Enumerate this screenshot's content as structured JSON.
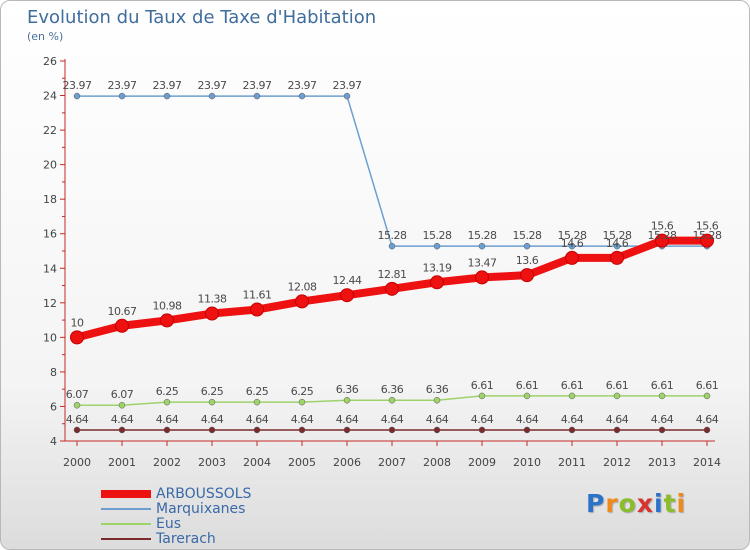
{
  "title": "Evolution du Taux de Taxe d'Habitation",
  "subtitle": "(en %)",
  "logo": {
    "text": "Proxiti",
    "letter_colors": [
      "#2b73c8",
      "#ef8a1a",
      "#8bbd2a",
      "#d7332f",
      "#2b73c8",
      "#8bbd2a",
      "#ef8a1a"
    ]
  },
  "chart_data": {
    "type": "line",
    "x": [
      "2000",
      "2001",
      "2002",
      "2003",
      "2004",
      "2005",
      "2006",
      "2007",
      "2008",
      "2009",
      "2010",
      "2011",
      "2012",
      "2013",
      "2014"
    ],
    "ylim": [
      4,
      26
    ],
    "yticks": [
      "4",
      "6",
      "8",
      "10",
      "12",
      "14",
      "16",
      "18",
      "20",
      "22",
      "24",
      "26"
    ],
    "grid": false,
    "legend_position": "bottom-left",
    "series": [
      {
        "name": "ARBOUSSOLS",
        "color": "#ee1111",
        "values": [
          10,
          10.67,
          10.98,
          11.38,
          11.61,
          12.08,
          12.44,
          12.81,
          13.19,
          13.47,
          13.6,
          14.6,
          14.6,
          15.6,
          15.6
        ],
        "labels": [
          "10",
          "10.67",
          "10.98",
          "11.38",
          "11.61",
          "12.08",
          "12.44",
          "12.81",
          "13.19",
          "13.47",
          "13.6",
          "14.6",
          "14.6",
          "15.6",
          "15.6"
        ]
      },
      {
        "name": "Marquixanes",
        "color": "#6c9fd0",
        "values": [
          23.97,
          23.97,
          23.97,
          23.97,
          23.97,
          23.97,
          23.97,
          15.28,
          15.28,
          15.28,
          15.28,
          15.28,
          15.28,
          15.28,
          15.28
        ],
        "labels": [
          "23.97",
          "23.97",
          "23.97",
          "23.97",
          "23.97",
          "23.97",
          "23.97",
          "15.28",
          "15.28",
          "15.28",
          "15.28",
          "15.28",
          "15.28",
          "15.28",
          "15.28"
        ]
      },
      {
        "name": "Eus",
        "color": "#9ed36a",
        "values": [
          6.07,
          6.07,
          6.25,
          6.25,
          6.25,
          6.25,
          6.36,
          6.36,
          6.36,
          6.61,
          6.61,
          6.61,
          6.61,
          6.61,
          6.61
        ],
        "labels": [
          "6.07",
          "6.07",
          "6.25",
          "6.25",
          "6.25",
          "6.25",
          "6.36",
          "6.36",
          "6.36",
          "6.61",
          "6.61",
          "6.61",
          "6.61",
          "6.61",
          "6.61"
        ]
      },
      {
        "name": "Tarerach",
        "color": "#7a2b2b",
        "values": [
          4.64,
          4.64,
          4.64,
          4.64,
          4.64,
          4.64,
          4.64,
          4.64,
          4.64,
          4.64,
          4.64,
          4.64,
          4.64,
          4.64,
          4.64
        ],
        "labels": [
          "4.64",
          "4.64",
          "4.64",
          "4.64",
          "4.64",
          "4.64",
          "4.64",
          "4.64",
          "4.64",
          "4.64",
          "4.64",
          "4.64",
          "4.64",
          "4.64",
          "4.64"
        ]
      }
    ]
  }
}
